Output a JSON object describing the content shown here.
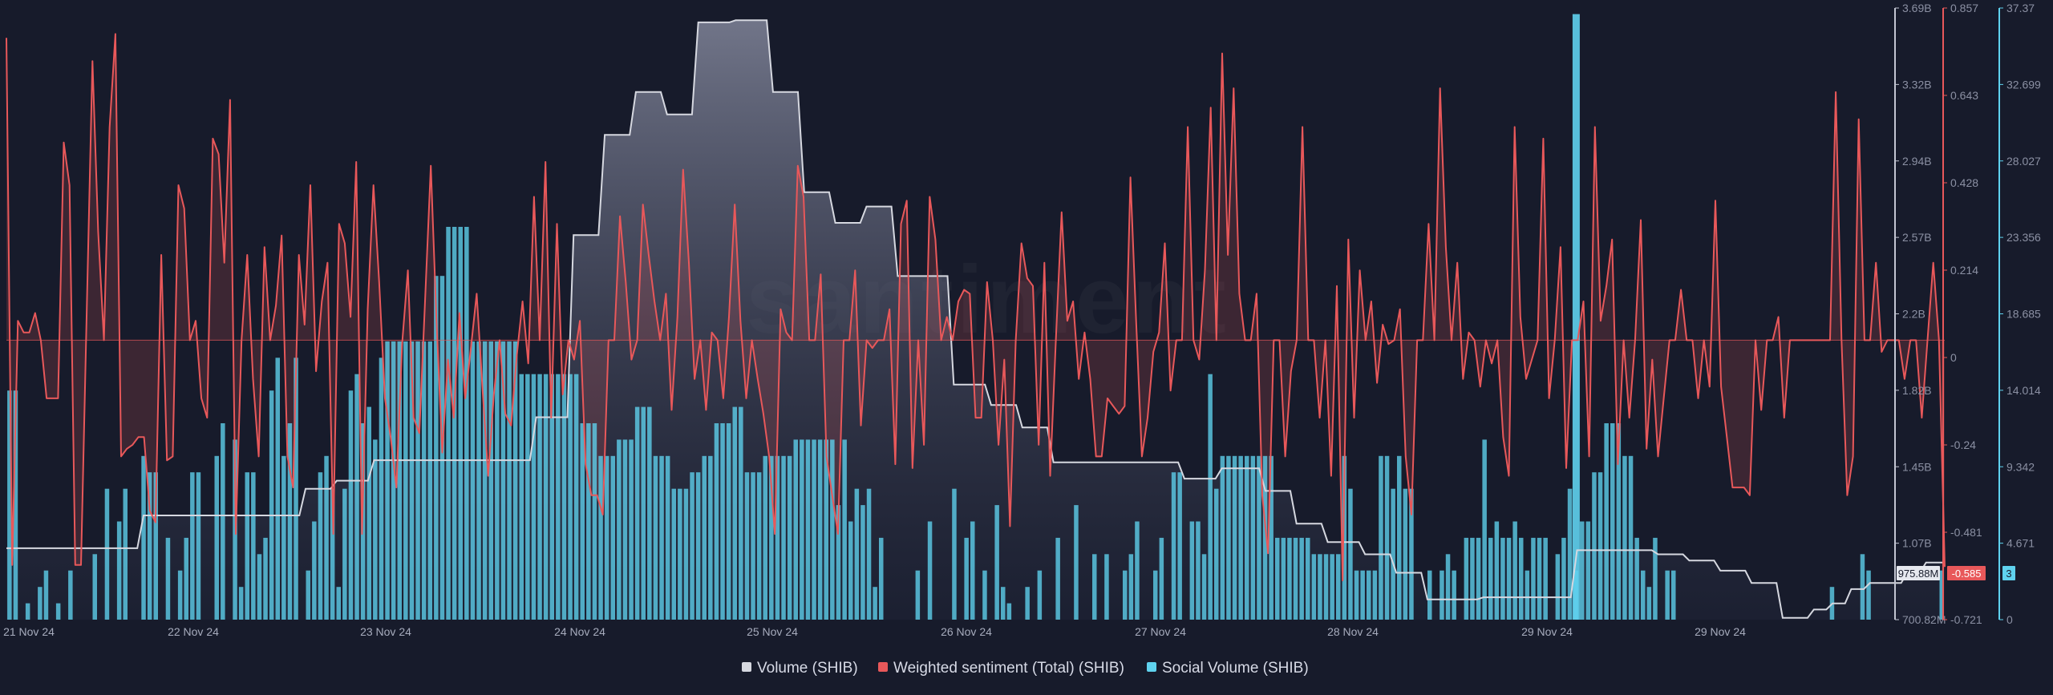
{
  "watermark": "santiment",
  "colors": {
    "background": "#171b2b",
    "volume": "#d6d8e0",
    "sentiment": "#e8585a",
    "social": "#5fd2ee",
    "grid": "#252a3c"
  },
  "legend": [
    {
      "label": "Volume (SHIB)",
      "color": "#d6d8e0"
    },
    {
      "label": "Weighted sentiment (Total) (SHIB)",
      "color": "#e8585a"
    },
    {
      "label": "Social Volume (SHIB)",
      "color": "#5fd2ee"
    }
  ],
  "chart_data": {
    "type": "bar+line",
    "x_labels": [
      "21 Nov 24",
      "22 Nov 24",
      "23 Nov 24",
      "24 Nov 24",
      "25 Nov 24",
      "26 Nov 24",
      "27 Nov 24",
      "28 Nov 24",
      "29 Nov 24",
      "29 Nov 24"
    ],
    "x_range": [
      "2024-11-21T00:00",
      "2024-11-29T00:00"
    ],
    "axes": {
      "volume": {
        "ticks": [
          "3.69B",
          "3.32B",
          "2.94B",
          "2.57B",
          "2.2B",
          "1.82B",
          "1.45B",
          "1.07B",
          "700.82M"
        ],
        "range": [
          700820000,
          3690000000
        ]
      },
      "sentiment": {
        "ticks": [
          "0.857",
          "0.643",
          "0.428",
          "0.214",
          "0",
          "-0.24",
          "-0.481",
          "-0.721"
        ],
        "range": [
          -0.721,
          0.857
        ]
      },
      "social": {
        "ticks": [
          "37.37",
          "32.699",
          "28.027",
          "23.356",
          "18.685",
          "14.014",
          "9.342",
          "4.671",
          "0"
        ],
        "range": [
          0,
          37.37
        ]
      }
    },
    "current_values": {
      "volume": "975.88M",
      "sentiment": "-0.585",
      "social": "3"
    },
    "volume_series": [
      1.05,
      1.05,
      1.05,
      1.05,
      1.05,
      1.05,
      1.05,
      1.05,
      1.05,
      1.05,
      1.05,
      1.05,
      1.05,
      1.05,
      1.05,
      1.05,
      1.05,
      1.05,
      1.05,
      1.05,
      1.05,
      1.05,
      1.21,
      1.21,
      1.21,
      1.21,
      1.21,
      1.21,
      1.21,
      1.21,
      1.21,
      1.21,
      1.21,
      1.21,
      1.21,
      1.21,
      1.21,
      1.21,
      1.21,
      1.21,
      1.21,
      1.21,
      1.21,
      1.21,
      1.21,
      1.21,
      1.21,
      1.21,
      1.34,
      1.34,
      1.34,
      1.34,
      1.34,
      1.38,
      1.38,
      1.38,
      1.38,
      1.38,
      1.38,
      1.48,
      1.48,
      1.48,
      1.48,
      1.48,
      1.48,
      1.48,
      1.48,
      1.48,
      1.48,
      1.48,
      1.48,
      1.48,
      1.48,
      1.48,
      1.48,
      1.48,
      1.48,
      1.48,
      1.48,
      1.48,
      1.48,
      1.48,
      1.48,
      1.48,
      1.48,
      1.69,
      1.69,
      1.69,
      1.69,
      1.69,
      1.69,
      2.58,
      2.58,
      2.58,
      2.58,
      2.58,
      3.07,
      3.07,
      3.07,
      3.07,
      3.07,
      3.28,
      3.28,
      3.28,
      3.28,
      3.28,
      3.17,
      3.17,
      3.17,
      3.17,
      3.17,
      3.62,
      3.62,
      3.62,
      3.62,
      3.62,
      3.62,
      3.63,
      3.63,
      3.63,
      3.63,
      3.63,
      3.63,
      3.28,
      3.28,
      3.28,
      3.28,
      3.28,
      2.79,
      2.79,
      2.79,
      2.79,
      2.79,
      2.64,
      2.64,
      2.64,
      2.64,
      2.64,
      2.72,
      2.72,
      2.72,
      2.72,
      2.72,
      2.38,
      2.38,
      2.38,
      2.38,
      2.38,
      2.38,
      2.38,
      2.38,
      2.38,
      1.85,
      1.85,
      1.85,
      1.85,
      1.85,
      1.85,
      1.75,
      1.75,
      1.75,
      1.75,
      1.75,
      1.64,
      1.64,
      1.64,
      1.64,
      1.64,
      1.47,
      1.47,
      1.47,
      1.47,
      1.47,
      1.47,
      1.47,
      1.47,
      1.47,
      1.47,
      1.47,
      1.47,
      1.47,
      1.47,
      1.47,
      1.47,
      1.47,
      1.47,
      1.47,
      1.47,
      1.47,
      1.39,
      1.39,
      1.39,
      1.39,
      1.39,
      1.39,
      1.44,
      1.44,
      1.44,
      1.44,
      1.44,
      1.44,
      1.44,
      1.33,
      1.33,
      1.33,
      1.33,
      1.33,
      1.17,
      1.17,
      1.17,
      1.17,
      1.17,
      1.08,
      1.08,
      1.08,
      1.08,
      1.08,
      1.08,
      1.02,
      1.02,
      1.02,
      1.02,
      1.02,
      0.93,
      0.93,
      0.93,
      0.93,
      0.93,
      0.8,
      0.8,
      0.8,
      0.8,
      0.8,
      0.8,
      0.8,
      0.8,
      0.8,
      0.81,
      0.81,
      0.81,
      0.81,
      0.81,
      0.81,
      0.81,
      0.81,
      0.81,
      0.81,
      0.81,
      0.81,
      0.81,
      0.81,
      0.81,
      1.04,
      1.04,
      1.04,
      1.04,
      1.04,
      1.04,
      1.04,
      1.04,
      1.04,
      1.04,
      1.04,
      1.04,
      1.04,
      1.02,
      1.02,
      1.02,
      1.02,
      1.02,
      0.99,
      0.99,
      0.99,
      0.99,
      0.99,
      0.94,
      0.94,
      0.94,
      0.94,
      0.94,
      0.88,
      0.88,
      0.88,
      0.88,
      0.88,
      0.71,
      0.71,
      0.71,
      0.71,
      0.71,
      0.75,
      0.75,
      0.75,
      0.78,
      0.78,
      0.78,
      0.85,
      0.85,
      0.85,
      0.88,
      0.88,
      0.88,
      0.88,
      0.88,
      0.88,
      0.93,
      0.93,
      0.93,
      0.98,
      0.98,
      0.98,
      0.98
    ],
    "sentiment_series": [
      0.78,
      -0.58,
      0.05,
      0.02,
      0.02,
      0.07,
      0.0,
      -0.15,
      -0.15,
      -0.15,
      0.51,
      0.4,
      -0.58,
      -0.58,
      0.07,
      0.72,
      0.28,
      0.0,
      0.55,
      0.79,
      -0.3,
      -0.28,
      -0.27,
      -0.25,
      -0.25,
      -0.44,
      -0.47,
      0.22,
      -0.31,
      -0.3,
      0.4,
      0.34,
      0.0,
      0.05,
      -0.15,
      -0.2,
      0.52,
      0.48,
      0.2,
      0.62,
      -0.5,
      0.0,
      0.22,
      -0.1,
      -0.3,
      0.24,
      0.0,
      0.09,
      0.27,
      -0.3,
      -0.38,
      0.22,
      0.04,
      0.4,
      -0.08,
      0.1,
      0.2,
      -0.5,
      0.3,
      0.25,
      0.06,
      0.46,
      -0.5,
      0.08,
      0.4,
      0.15,
      -0.15,
      -0.25,
      -0.38,
      -0.01,
      0.18,
      -0.2,
      -0.24,
      0.1,
      0.45,
      0.05,
      -0.29,
      -0.05,
      -0.2,
      0.07,
      -0.15,
      -0.02,
      0.12,
      -0.12,
      -0.35,
      -0.14,
      0.0,
      -0.19,
      -0.22,
      -0.04,
      0.1,
      -0.06,
      0.37,
      0.0,
      0.46,
      -0.2,
      0.3,
      -0.14,
      0.0,
      -0.05,
      0.05,
      -0.32,
      -0.4,
      -0.4,
      -0.45,
      0.0,
      0.0,
      0.32,
      0.15,
      -0.05,
      0.0,
      0.35,
      0.22,
      0.1,
      0.0,
      0.12,
      -0.18,
      0.06,
      0.44,
      0.2,
      -0.1,
      0.0,
      -0.18,
      0.02,
      0.0,
      -0.15,
      0.06,
      0.35,
      0.05,
      -0.15,
      0.0,
      -0.1,
      -0.19,
      -0.3,
      -0.5,
      0.08,
      0.02,
      0.0,
      0.45,
      0.37,
      0.0,
      0.0,
      0.17,
      -0.3,
      -0.4,
      -0.5,
      0.0,
      0.0,
      0.18,
      -0.22,
      0.0,
      -0.02,
      0.0,
      0.0,
      0.08,
      -0.32,
      0.3,
      0.36,
      -0.33,
      0.0,
      -0.27,
      0.37,
      0.26,
      0.0,
      0.06,
      0.0,
      0.1,
      0.13,
      0.12,
      -0.2,
      -0.2,
      0.15,
      0.0,
      -0.27,
      -0.05,
      -0.48,
      0.0,
      0.25,
      0.16,
      0.14,
      -0.27,
      0.2,
      -0.35,
      0.0,
      0.33,
      0.05,
      0.1,
      -0.1,
      0.02,
      -0.1,
      -0.3,
      -0.3,
      -0.15,
      -0.17,
      -0.19,
      -0.17,
      0.42,
      0.05,
      -0.3,
      -0.2,
      -0.03,
      0.02,
      0.25,
      -0.13,
      0.0,
      0.0,
      0.55,
      0.0,
      -0.05,
      0.18,
      0.6,
      0.0,
      0.74,
      0.22,
      0.65,
      0.12,
      0.0,
      0.0,
      0.12,
      -0.4,
      -0.55,
      0.0,
      0.0,
      -0.3,
      -0.08,
      0.0,
      0.55,
      0.0,
      0.0,
      -0.2,
      0.0,
      -0.35,
      0.14,
      -0.62,
      0.26,
      -0.2,
      0.18,
      0.0,
      0.1,
      -0.11,
      0.04,
      -0.01,
      0.0,
      0.08,
      -0.3,
      -0.45,
      0.0,
      0.0,
      0.3,
      0.0,
      0.65,
      0.24,
      0.0,
      0.2,
      -0.1,
      0.02,
      0.0,
      -0.12,
      0.0,
      -0.06,
      0.0,
      -0.25,
      -0.35,
      0.55,
      0.06,
      -0.1,
      -0.05,
      0.0,
      0.52,
      -0.15,
      0.0,
      0.24,
      -0.33,
      0.0,
      0.0,
      0.1,
      -0.3,
      0.55,
      0.05,
      0.14,
      0.26,
      -0.32,
      0.0,
      -0.2,
      0.0,
      0.31,
      -0.28,
      -0.05,
      -0.3,
      -0.15,
      0.0,
      0.0,
      0.13,
      0.0,
      0.0,
      -0.15,
      0.0,
      -0.12,
      0.36,
      -0.12,
      -0.25,
      -0.38,
      -0.38,
      -0.38,
      -0.4,
      0.0,
      -0.18,
      0.0,
      0.0,
      0.06,
      -0.2,
      0.0,
      0.0,
      0.0,
      0.0,
      0.0,
      0.0,
      0.0,
      0.0,
      0.64,
      0.0,
      -0.4,
      -0.3,
      0.57,
      0.0,
      0.0,
      0.2,
      -0.03,
      0.0,
      0.0,
      0.0,
      -0.1,
      0.0,
      0.0,
      -0.2,
      0.0,
      0.2,
      0.0,
      -0.585
    ],
    "social_series": [
      14,
      14,
      0,
      1,
      0,
      2,
      3,
      0,
      1,
      0,
      3,
      0,
      0,
      0,
      4,
      0,
      8,
      0,
      6,
      8,
      0,
      0,
      10,
      9,
      9,
      0,
      5,
      0,
      3,
      5,
      9,
      9,
      0,
      0,
      10,
      12,
      0,
      11,
      2,
      9,
      9,
      4,
      5,
      14,
      16,
      10,
      12,
      16,
      0,
      3,
      6,
      9,
      10,
      8,
      2,
      8,
      14,
      15,
      12,
      13,
      11,
      16,
      17,
      17,
      17,
      17,
      17,
      17,
      17,
      17,
      21,
      21,
      24,
      24,
      24,
      24,
      17,
      17,
      17,
      17,
      17,
      17,
      17,
      17,
      15,
      15,
      15,
      15,
      15,
      15,
      15,
      15,
      15,
      15,
      12,
      12,
      12,
      10,
      10,
      10,
      11,
      11,
      11,
      13,
      13,
      13,
      10,
      10,
      10,
      8,
      8,
      8,
      9,
      9,
      10,
      10,
      12,
      12,
      12,
      13,
      13,
      9,
      9,
      9,
      10,
      10,
      10,
      10,
      10,
      11,
      11,
      11,
      11,
      11,
      11,
      11,
      7,
      11,
      6,
      8,
      7,
      8,
      2,
      5,
      0,
      0,
      0,
      0,
      0,
      3,
      0,
      6,
      0,
      0,
      0,
      8,
      0,
      5,
      6,
      0,
      3,
      0,
      7,
      2,
      1,
      0,
      0,
      2,
      0,
      3,
      0,
      0,
      5,
      0,
      0,
      7,
      0,
      0,
      4,
      0,
      4,
      0,
      0,
      3,
      4,
      6,
      0,
      0,
      3,
      5,
      0,
      9,
      9,
      0,
      6,
      6,
      4,
      15,
      8,
      10,
      10,
      10,
      10,
      10,
      10,
      10,
      10,
      10,
      5,
      5,
      5,
      5,
      5,
      5,
      4,
      4,
      4,
      4,
      4,
      10,
      8,
      3,
      3,
      3,
      3,
      10,
      10,
      8,
      10,
      8,
      8,
      0,
      0,
      3,
      0,
      3,
      4,
      3,
      0,
      5,
      5,
      5,
      11,
      5,
      6,
      5,
      5,
      6,
      5,
      3,
      5,
      5,
      5,
      0,
      4,
      5,
      8,
      3,
      6,
      6,
      9,
      9,
      12,
      12,
      12,
      10,
      10,
      5,
      3,
      2,
      5,
      0,
      3,
      3,
      0,
      0,
      0,
      0,
      0,
      0,
      0,
      0,
      0,
      0,
      0,
      0,
      0,
      0,
      0,
      0,
      0,
      0,
      0,
      0,
      0,
      0,
      0,
      0,
      0,
      2,
      0,
      0,
      0,
      0,
      4,
      3,
      0,
      0,
      0,
      0,
      0,
      0,
      0,
      0,
      0,
      0,
      0,
      3
    ]
  }
}
